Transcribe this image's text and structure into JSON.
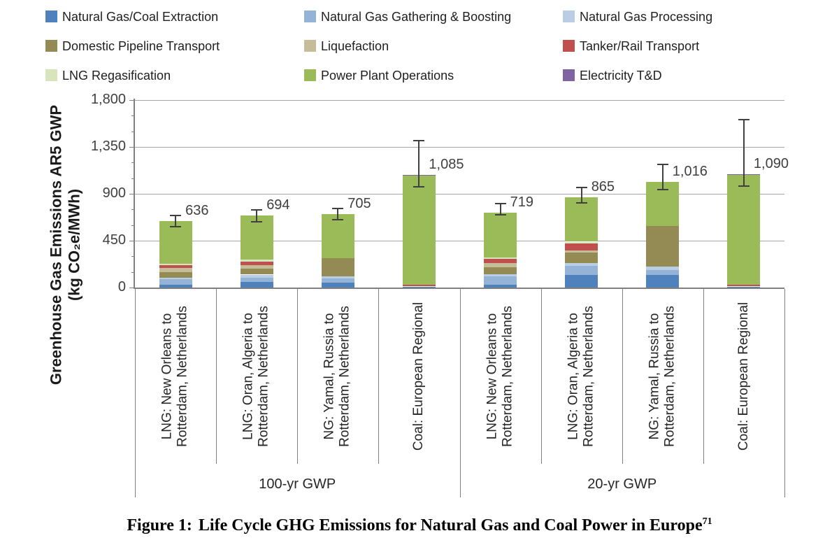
{
  "figure": {
    "caption_prefix": "Figure 1:",
    "caption_text": "Life Cycle GHG Emissions for Natural Gas and Coal Power in Europe",
    "caption_superscript": "71"
  },
  "y_axis_title": {
    "line1": "Greenhouse Gas Emissions AR5 GWP",
    "line2": "(kg CO₂e/MWh)"
  },
  "chart_data": {
    "type": "stacked-bar",
    "title": "Life Cycle GHG Emissions for Natural Gas and Coal Power in Europe",
    "ylabel": "Greenhouse Gas Emissions AR5 GWP (kg CO2e/MWh)",
    "legend_position": "top",
    "y_axis": {
      "min": 0,
      "max": 1800,
      "major_step": 450,
      "minor_step": 150,
      "major_tick_labels": [
        "0",
        "450",
        "900",
        "1,350",
        "1,800"
      ],
      "gridlines": "horizontal-major"
    },
    "series": [
      {
        "name": "Natural Gas/Coal Extraction",
        "color": "#4F81BD"
      },
      {
        "name": "Natural Gas Gathering & Boosting",
        "color": "#95B3D7"
      },
      {
        "name": "Natural Gas Processing",
        "color": "#B9CDE5"
      },
      {
        "name": "Domestic Pipeline Transport",
        "color": "#948A54"
      },
      {
        "name": "Liquefaction",
        "color": "#C4BD97"
      },
      {
        "name": "Tanker/Rail Transport",
        "color": "#C0504D"
      },
      {
        "name": "LNG Regasification",
        "color": "#D7E4BC"
      },
      {
        "name": "Power Plant Operations",
        "color": "#9BBB59"
      },
      {
        "name": "Electricity T&D",
        "color": "#8064A2"
      }
    ],
    "groups": [
      "100-yr GWP",
      "20-yr GWP"
    ],
    "bars": [
      {
        "group": "100-yr GWP",
        "category": "LNG: New Orleans to Rotterdam, Netherlands",
        "total": 636,
        "total_label": "636",
        "error_low": 588,
        "error_high": 695,
        "values": [
          25,
          54,
          16,
          54,
          38,
          25,
          16,
          408,
          0
        ]
      },
      {
        "group": "100-yr GWP",
        "category": "LNG: Oran, Algeria to Rotterdam, Netherlands",
        "total": 694,
        "total_label": "694",
        "error_low": 630,
        "error_high": 745,
        "values": [
          54,
          43,
          27,
          56,
          36,
          34,
          16,
          428,
          0
        ]
      },
      {
        "group": "100-yr GWP",
        "category": "NG: Yamal, Russia to Rotterdam, Netherlands",
        "total": 705,
        "total_label": "705",
        "error_low": 655,
        "error_high": 760,
        "values": [
          49,
          40,
          18,
          177,
          0,
          0,
          0,
          421,
          0
        ]
      },
      {
        "group": "100-yr GWP",
        "category": "Coal: European Regional",
        "total": 1085,
        "total_label": "1,085",
        "error_low": 965,
        "error_high": 1410,
        "values": [
          10,
          0,
          0,
          0,
          0,
          18,
          0,
          1050,
          7
        ]
      },
      {
        "group": "20-yr GWP",
        "category": "LNG: New Orleans to Rotterdam, Netherlands",
        "total": 719,
        "total_label": "719",
        "error_low": 698,
        "error_high": 808,
        "values": [
          29,
          76,
          20,
          67,
          45,
          38,
          13,
          431,
          0
        ]
      },
      {
        "group": "20-yr GWP",
        "category": "LNG: Oran, Algeria to Rotterdam, Netherlands",
        "total": 865,
        "total_label": "865",
        "error_low": 813,
        "error_high": 960,
        "values": [
          120,
          90,
          28,
          100,
          15,
          72,
          15,
          425,
          0
        ]
      },
      {
        "group": "20-yr GWP",
        "category": "NG: Yamal, Russia to Rotterdam, Netherlands",
        "total": 1016,
        "total_label": "1,016",
        "error_low": 940,
        "error_high": 1185,
        "values": [
          121,
          49,
          29,
          394,
          0,
          0,
          0,
          423,
          0
        ]
      },
      {
        "group": "20-yr GWP",
        "category": "Coal: European Regional",
        "total": 1090,
        "total_label": "1,090",
        "error_low": 975,
        "error_high": 1610,
        "values": [
          10,
          0,
          0,
          0,
          0,
          18,
          0,
          1054,
          8
        ]
      }
    ]
  }
}
